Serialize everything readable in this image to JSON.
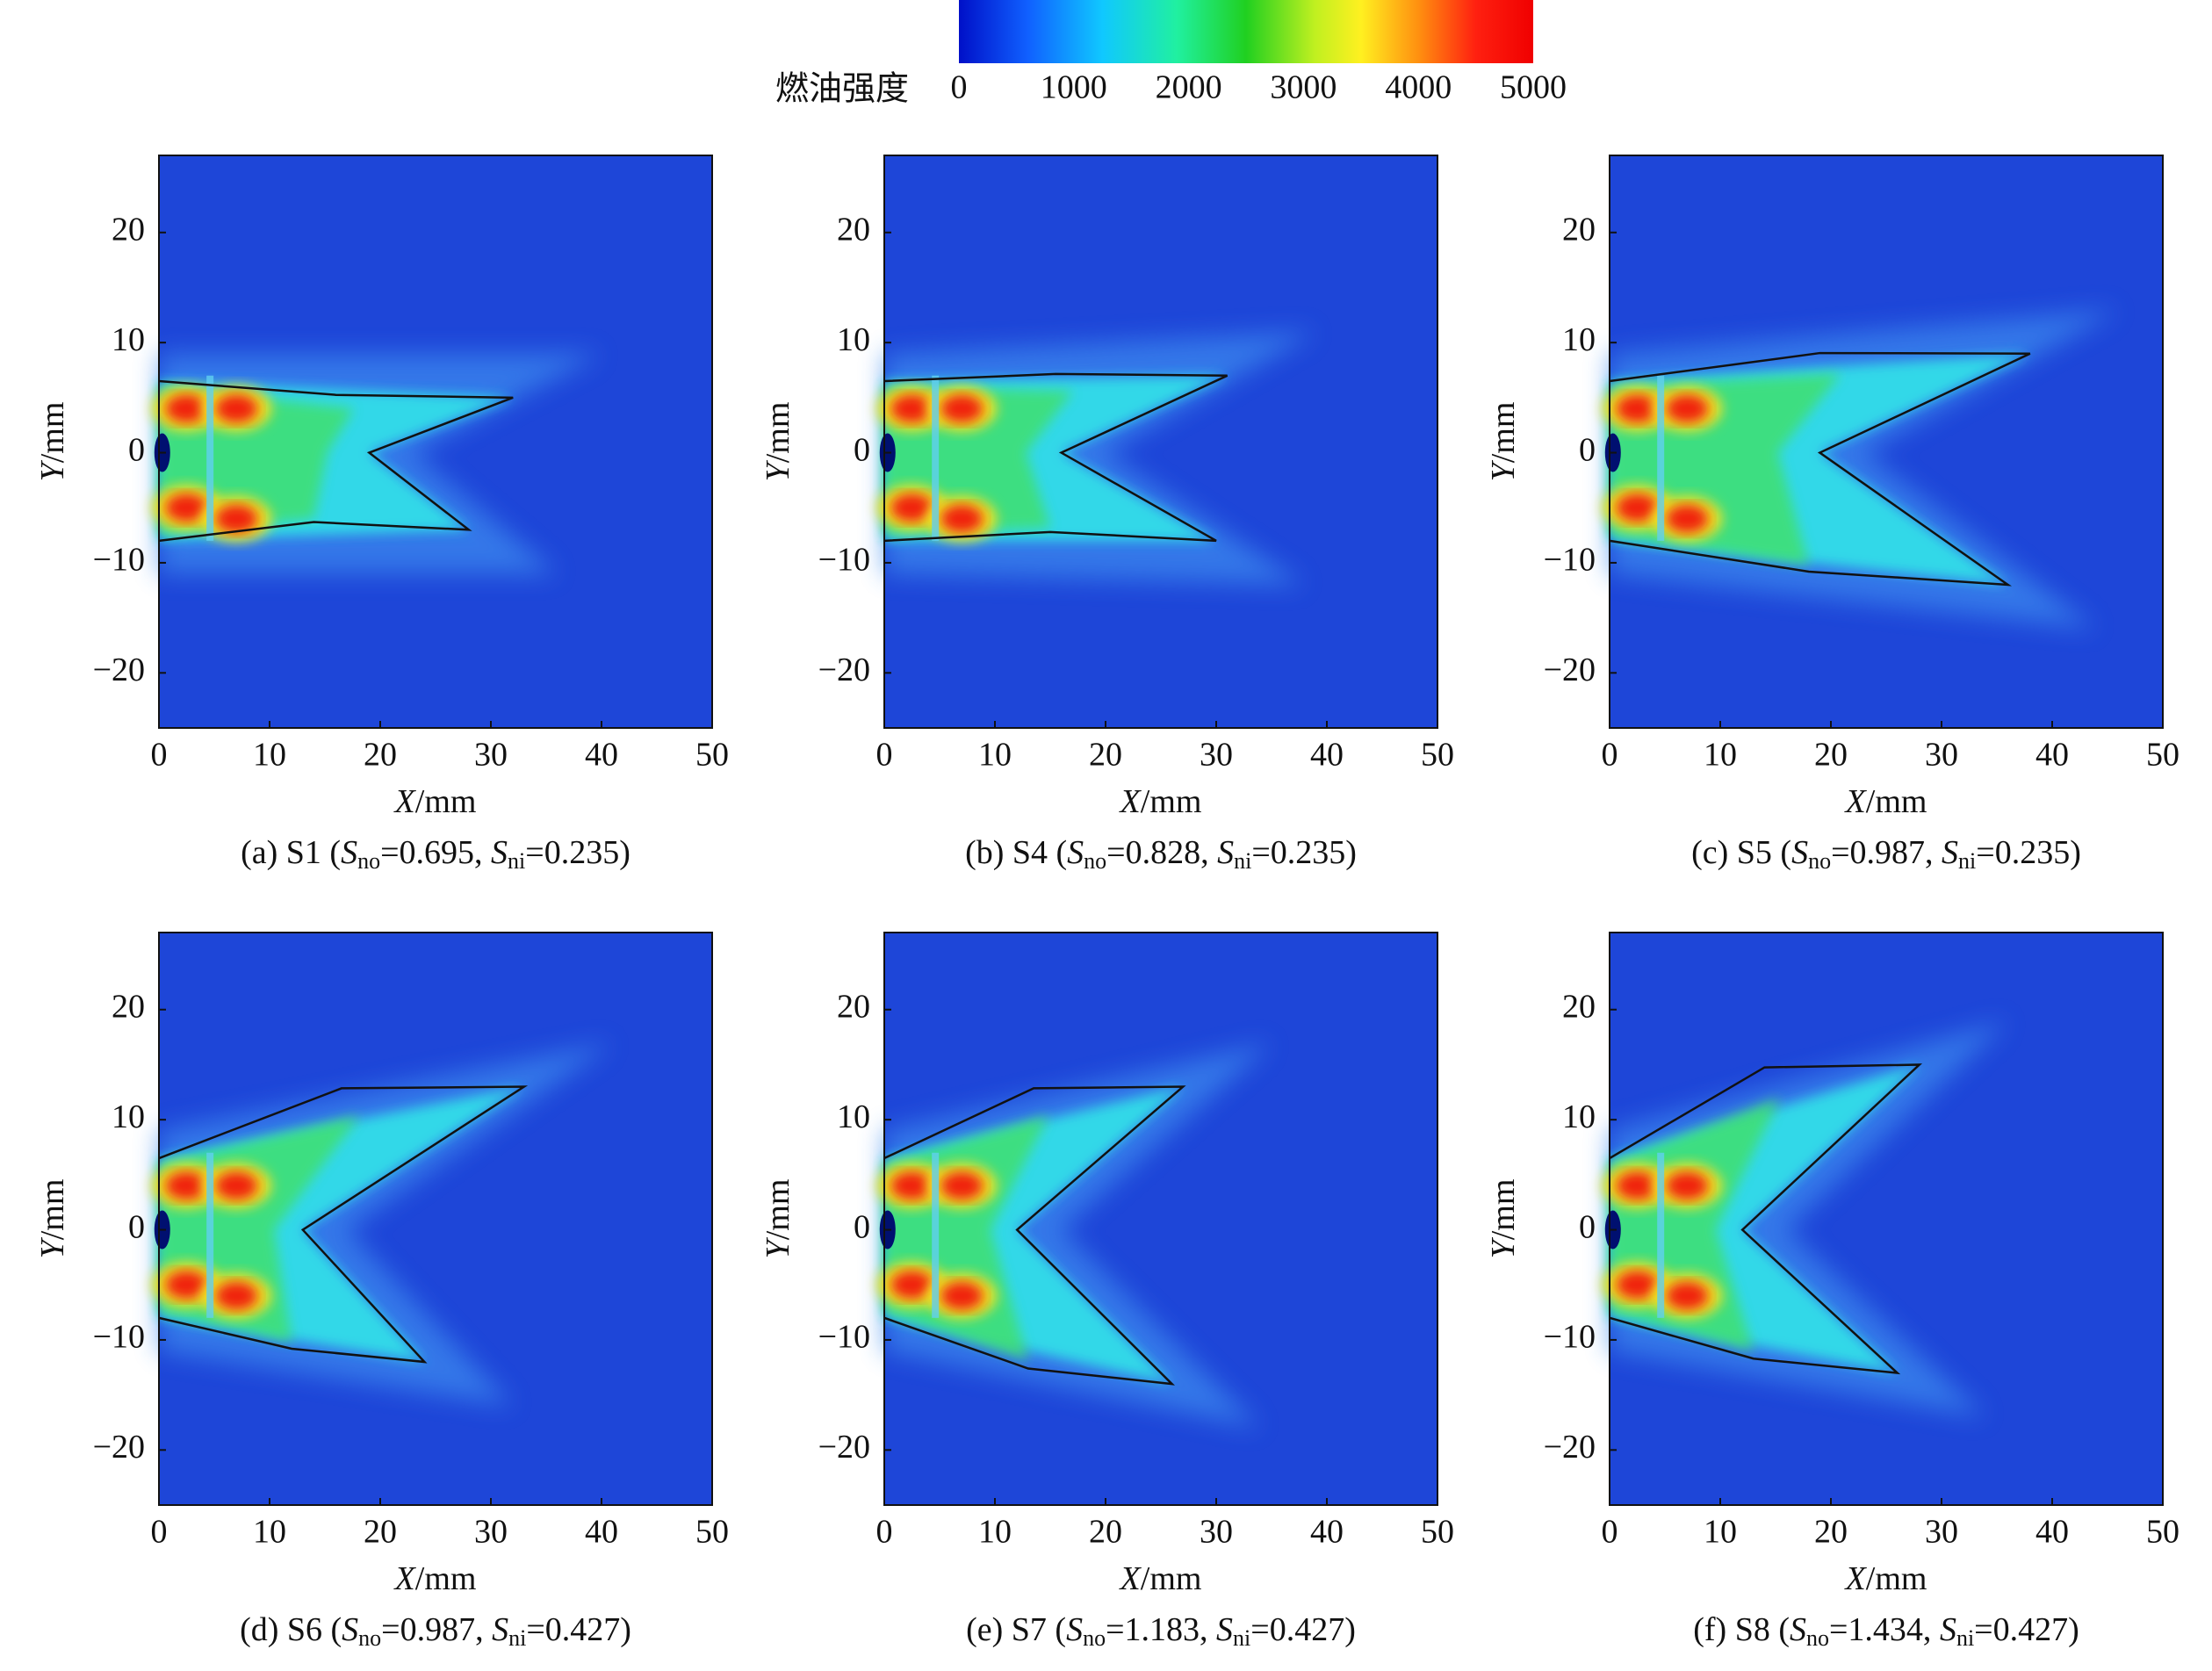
{
  "colorbar": {
    "label": "燃油强度",
    "lim": [
      0,
      5000
    ],
    "ticks": [
      0,
      1000,
      2000,
      3000,
      4000,
      5000
    ]
  },
  "chart_data": [
    {
      "type": "heatmap",
      "title": [
        "(a) S1 (",
        "S",
        "no",
        "=0.695, ",
        "S",
        "ni",
        "=0.235)"
      ],
      "xlabel": [
        "X",
        "/mm"
      ],
      "ylabel": [
        "Y",
        "/mm"
      ],
      "xlim": [
        0,
        50
      ],
      "ylim": [
        -25,
        27
      ],
      "xticks": [
        0,
        10,
        20,
        30,
        40,
        50
      ],
      "yticks": [
        {
          "value": -20,
          "label": "−20"
        },
        {
          "value": -10,
          "label": "−10"
        },
        0,
        10,
        20
      ]
    },
    {
      "type": "heatmap",
      "title": [
        "(b) S4 (",
        "S",
        "no",
        "=0.828, ",
        "S",
        "ni",
        "=0.235)"
      ],
      "xlabel": [
        "X",
        "/mm"
      ],
      "ylabel": [
        "Y",
        "/mm"
      ],
      "xlim": [
        0,
        50
      ],
      "ylim": [
        -25,
        27
      ],
      "xticks": [
        0,
        10,
        20,
        30,
        40,
        50
      ],
      "yticks": [
        {
          "value": -20,
          "label": "−20"
        },
        {
          "value": -10,
          "label": "−10"
        },
        0,
        10,
        20
      ]
    },
    {
      "type": "heatmap",
      "title": [
        "(c) S5 (",
        "S",
        "no",
        "=0.987, ",
        "S",
        "ni",
        "=0.235)"
      ],
      "xlabel": [
        "X",
        "/mm"
      ],
      "ylabel": [
        "Y",
        "/mm"
      ],
      "xlim": [
        0,
        50
      ],
      "ylim": [
        -25,
        27
      ],
      "xticks": [
        0,
        10,
        20,
        30,
        40,
        50
      ],
      "yticks": [
        {
          "value": -20,
          "label": "−20"
        },
        {
          "value": -10,
          "label": "−10"
        },
        0,
        10,
        20
      ]
    },
    {
      "type": "heatmap",
      "title": [
        "(d) S6 (",
        "S",
        "no",
        "=0.987, ",
        "S",
        "ni",
        "=0.427)"
      ],
      "xlabel": [
        "X",
        "/mm"
      ],
      "ylabel": [
        "Y",
        "/mm"
      ],
      "xlim": [
        0,
        50
      ],
      "ylim": [
        -25,
        27
      ],
      "xticks": [
        0,
        10,
        20,
        30,
        40,
        50
      ],
      "yticks": [
        {
          "value": -20,
          "label": "−20"
        },
        {
          "value": -10,
          "label": "−10"
        },
        0,
        10,
        20
      ]
    },
    {
      "type": "heatmap",
      "title": [
        "(e) S7 (",
        "S",
        "no",
        "=1.183, ",
        "S",
        "ni",
        "=0.427)"
      ],
      "xlabel": [
        "X",
        "/mm"
      ],
      "ylabel": [
        "Y",
        "/mm"
      ],
      "xlim": [
        0,
        50
      ],
      "ylim": [
        -25,
        27
      ],
      "xticks": [
        0,
        10,
        20,
        30,
        40,
        50
      ],
      "yticks": [
        {
          "value": -20,
          "label": "−20"
        },
        {
          "value": -10,
          "label": "−10"
        },
        0,
        10,
        20
      ]
    },
    {
      "type": "heatmap",
      "title": [
        "(f) S8 (",
        "S",
        "no",
        "=1.434, ",
        "S",
        "ni",
        "=0.427)"
      ],
      "xlabel": [
        "X",
        "/mm"
      ],
      "ylabel": [
        "Y",
        "/mm"
      ],
      "xlim": [
        0,
        50
      ],
      "ylim": [
        -25,
        27
      ],
      "xticks": [
        0,
        10,
        20,
        30,
        40,
        50
      ],
      "yticks": [
        {
          "value": -20,
          "label": "−20"
        },
        {
          "value": -10,
          "label": "−10"
        },
        0,
        10,
        20
      ]
    }
  ]
}
